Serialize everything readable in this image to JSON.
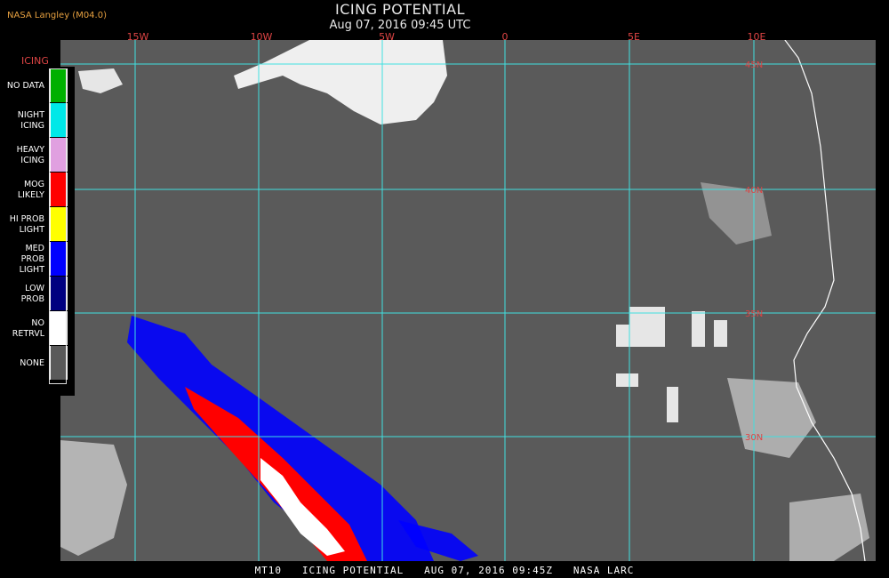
{
  "header": {
    "source": "NASA Langley (M04.0)",
    "title": "ICING POTENTIAL",
    "datetime": "Aug 07, 2016 09:45 UTC"
  },
  "longitude_labels": [
    "15W",
    "10W",
    "5W",
    "0",
    "5E",
    "10E"
  ],
  "latitude_labels": [
    "45N",
    "40N",
    "35N",
    "30N"
  ],
  "legend": {
    "title": "ICING",
    "items": [
      {
        "label": "NO DATA",
        "color": "#00b000"
      },
      {
        "label": "NIGHT\nICING",
        "color": "#00e8e8"
      },
      {
        "label": "HEAVY\nICING",
        "color": "#e0a0e0"
      },
      {
        "label": "MOG\nLIKELY",
        "color": "#ff0000"
      },
      {
        "label": "HI PROB\nLIGHT",
        "color": "#ffff00"
      },
      {
        "label": "MED PROB\nLIGHT",
        "color": "#0000ff"
      },
      {
        "label": "LOW\nPROB",
        "color": "#000080"
      },
      {
        "label": "NO\nRETRVL",
        "color": "#ffffff"
      },
      {
        "label": "NONE",
        "color": "#5a5a5a"
      }
    ]
  },
  "colors": {
    "grid": "#40e0e0",
    "background": "#5a5a5a",
    "coast": "#ffffff",
    "lon_label": "#dd4444"
  },
  "footer": "MT10   ICING POTENTIAL   AUG 07, 2016 09:45Z   NASA LARC"
}
